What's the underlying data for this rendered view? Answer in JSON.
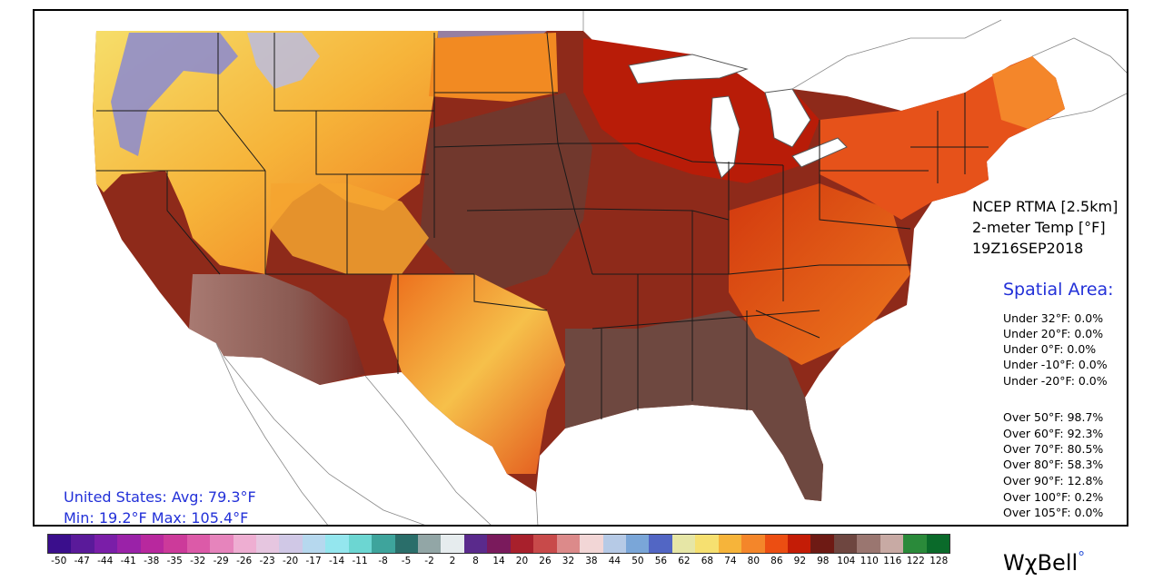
{
  "product": {
    "source": "NCEP RTMA [2.5km]",
    "variable": "2-meter Temp [°F]",
    "valid_time": "19Z16SEP2018"
  },
  "spatial_area": {
    "title": "Spatial Area:",
    "under": [
      "Under 32°F: 0.0%",
      "Under 20°F: 0.0%",
      "Under 0°F: 0.0%",
      "Under -10°F: 0.0%",
      "Under -20°F: 0.0%"
    ],
    "over": [
      "Over 50°F: 98.7%",
      "Over 60°F: 92.3%",
      "Over 70°F: 80.5%",
      "Over 80°F: 58.3%",
      "Over 90°F: 12.8%",
      "Over 100°F: 0.2%",
      "Over 105°F: 0.0%"
    ]
  },
  "us_stats": {
    "line1": "United States: Avg:  79.3°F",
    "line2": "Min:  19.2°F Max: 105.4°F"
  },
  "colorbar": {
    "ticks": [
      "-50",
      "-47",
      "-44",
      "-41",
      "-38",
      "-35",
      "-32",
      "-29",
      "-26",
      "-23",
      "-20",
      "-17",
      "-14",
      "-11",
      "-8",
      "-5",
      "-2",
      "2",
      "8",
      "14",
      "20",
      "26",
      "32",
      "38",
      "44",
      "50",
      "56",
      "62",
      "68",
      "74",
      "80",
      "86",
      "92",
      "98",
      "104",
      "110",
      "116",
      "122",
      "128"
    ],
    "colors": [
      "#3a0e8c",
      "#5a1a9a",
      "#7a1ea8",
      "#9a22a8",
      "#b8289e",
      "#cc3a9a",
      "#dc5aa8",
      "#e684bc",
      "#eeaed2",
      "#e6c6e0",
      "#d0c8e6",
      "#b6d8ee",
      "#94e6ee",
      "#6cd6d2",
      "#3ea49c",
      "#2a6e6a",
      "#92a6a6",
      "#e6ecee",
      "#5a2a8c",
      "#7a1a5c",
      "#a8202c",
      "#c84a4a",
      "#dc8a8a",
      "#f2d6d6",
      "#b6cae6",
      "#7aa6d8",
      "#5266c4",
      "#e6e6a6",
      "#f6e070",
      "#f6b43a",
      "#f4862a",
      "#ec4e12",
      "#c41c06",
      "#6e1a14",
      "#6e4640",
      "#9a7670",
      "#c8aaa4",
      "#2a8a3a",
      "#0a6a2a"
    ]
  },
  "brand": {
    "text": "WχBell",
    "mark": "°"
  }
}
